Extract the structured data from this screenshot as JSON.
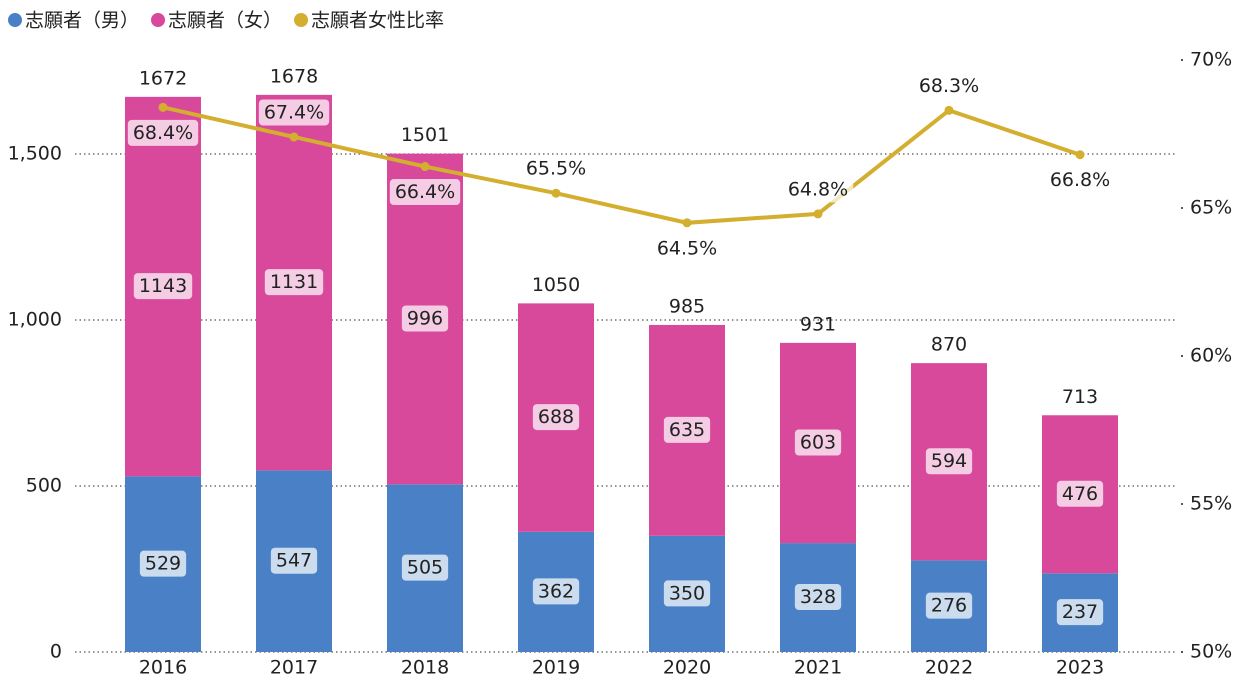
{
  "chart_data": {
    "type": "bar",
    "categories": [
      "2016",
      "2017",
      "2018",
      "2019",
      "2020",
      "2021",
      "2022",
      "2023"
    ],
    "series": [
      {
        "name": "志願者（男）",
        "color": "#4a80c6",
        "values": [
          529,
          547,
          505,
          362,
          350,
          328,
          276,
          237
        ]
      },
      {
        "name": "志願者（女）",
        "color": "#d8489b",
        "values": [
          1143,
          1131,
          996,
          688,
          635,
          603,
          594,
          476
        ]
      },
      {
        "name": "志願者女性比率",
        "color": "#d4ae2e",
        "type": "line",
        "axis": "y2",
        "values": [
          68.4,
          67.4,
          66.4,
          65.5,
          64.5,
          64.8,
          68.3,
          66.8
        ],
        "value_labels": [
          "68.4%",
          "67.4%",
          "66.4%",
          "65.5%",
          "64.5%",
          "64.8%",
          "68.3%",
          "66.8%"
        ]
      }
    ],
    "totals": [
      1672,
      1678,
      1501,
      1050,
      985,
      931,
      870,
      713
    ],
    "ylim": [
      0,
      1783
    ],
    "yticks": [
      0,
      500,
      {
        "value": 1000,
        "label": "1,000"
      },
      {
        "value": 1500,
        "label": "1,500"
      }
    ],
    "y2lim": [
      50,
      70
    ],
    "y2ticks": [
      {
        "value": 50,
        "label": "50%"
      },
      {
        "value": 55,
        "label": "55%"
      },
      {
        "value": 60,
        "label": "60%"
      },
      {
        "value": 65,
        "label": "65%"
      },
      {
        "value": 70,
        "label": "70%"
      }
    ],
    "grid": true,
    "stacked": true,
    "legend": "top-left"
  }
}
